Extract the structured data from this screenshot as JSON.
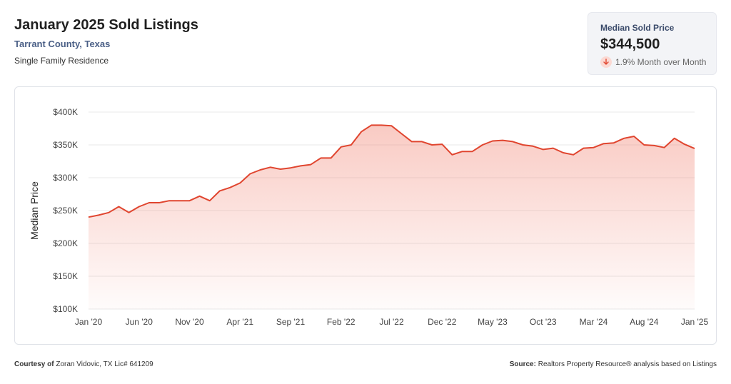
{
  "header": {
    "title": "January 2025 Sold Listings",
    "location": "Tarrant County, Texas",
    "property_type": "Single Family Residence"
  },
  "stat": {
    "label": "Median Sold Price",
    "value": "$344,500",
    "change": "1.9% Month over Month",
    "direction": "down",
    "icon": "arrow-down-icon"
  },
  "chart_data": {
    "type": "area",
    "ylabel": "Median Price",
    "ylim": [
      100000,
      400000
    ],
    "yticks": [
      100000,
      150000,
      200000,
      250000,
      300000,
      350000,
      400000
    ],
    "ytick_labels": [
      "$100K",
      "$150K",
      "$200K",
      "$250K",
      "$300K",
      "$350K",
      "$400K"
    ],
    "xtick_labels": [
      "Jan '20",
      "Jun '20",
      "Nov '20",
      "Apr '21",
      "Sep '21",
      "Feb '22",
      "Jul '22",
      "Dec '22",
      "May '23",
      "Oct '23",
      "Mar '24",
      "Aug '24",
      "Jan '25"
    ],
    "xtick_indices": [
      0,
      5,
      10,
      15,
      20,
      25,
      30,
      35,
      40,
      45,
      50,
      55,
      60
    ],
    "x": [
      "2020-01",
      "2020-02",
      "2020-03",
      "2020-04",
      "2020-05",
      "2020-06",
      "2020-07",
      "2020-08",
      "2020-09",
      "2020-10",
      "2020-11",
      "2020-12",
      "2021-01",
      "2021-02",
      "2021-03",
      "2021-04",
      "2021-05",
      "2021-06",
      "2021-07",
      "2021-08",
      "2021-09",
      "2021-10",
      "2021-11",
      "2021-12",
      "2022-01",
      "2022-02",
      "2022-03",
      "2022-04",
      "2022-05",
      "2022-06",
      "2022-07",
      "2022-08",
      "2022-09",
      "2022-10",
      "2022-11",
      "2022-12",
      "2023-01",
      "2023-02",
      "2023-03",
      "2023-04",
      "2023-05",
      "2023-06",
      "2023-07",
      "2023-08",
      "2023-09",
      "2023-10",
      "2023-11",
      "2023-12",
      "2024-01",
      "2024-02",
      "2024-03",
      "2024-04",
      "2024-05",
      "2024-06",
      "2024-07",
      "2024-08",
      "2024-09",
      "2024-10",
      "2024-11",
      "2024-12",
      "2025-01"
    ],
    "series": [
      {
        "values": [
          240000,
          243000,
          247000,
          256000,
          247000,
          256000,
          262000,
          262000,
          265000,
          265000,
          265000,
          272000,
          265000,
          280000,
          285000,
          292000,
          306000,
          312000,
          316000,
          313000,
          315000,
          318000,
          320000,
          330000,
          330000,
          347000,
          350000,
          370000,
          380000,
          380000,
          379000,
          367000,
          355000,
          355000,
          350000,
          351000,
          335000,
          340000,
          340000,
          350000,
          356000,
          357000,
          355000,
          350000,
          348000,
          343000,
          345000,
          338000,
          335000,
          345000,
          346000,
          352000,
          353000,
          360000,
          363000,
          350000,
          349000,
          346000,
          360000,
          351000,
          344500
        ],
        "color": "#e0452f"
      }
    ],
    "grid": true,
    "legend": "none"
  },
  "footer": {
    "courtesy_label": "Courtesy of",
    "courtesy_text": "Zoran Vidovic, TX Lic# 641209",
    "source_label": "Source:",
    "source_text": "Realtors Property Resource® analysis based on Listings"
  }
}
